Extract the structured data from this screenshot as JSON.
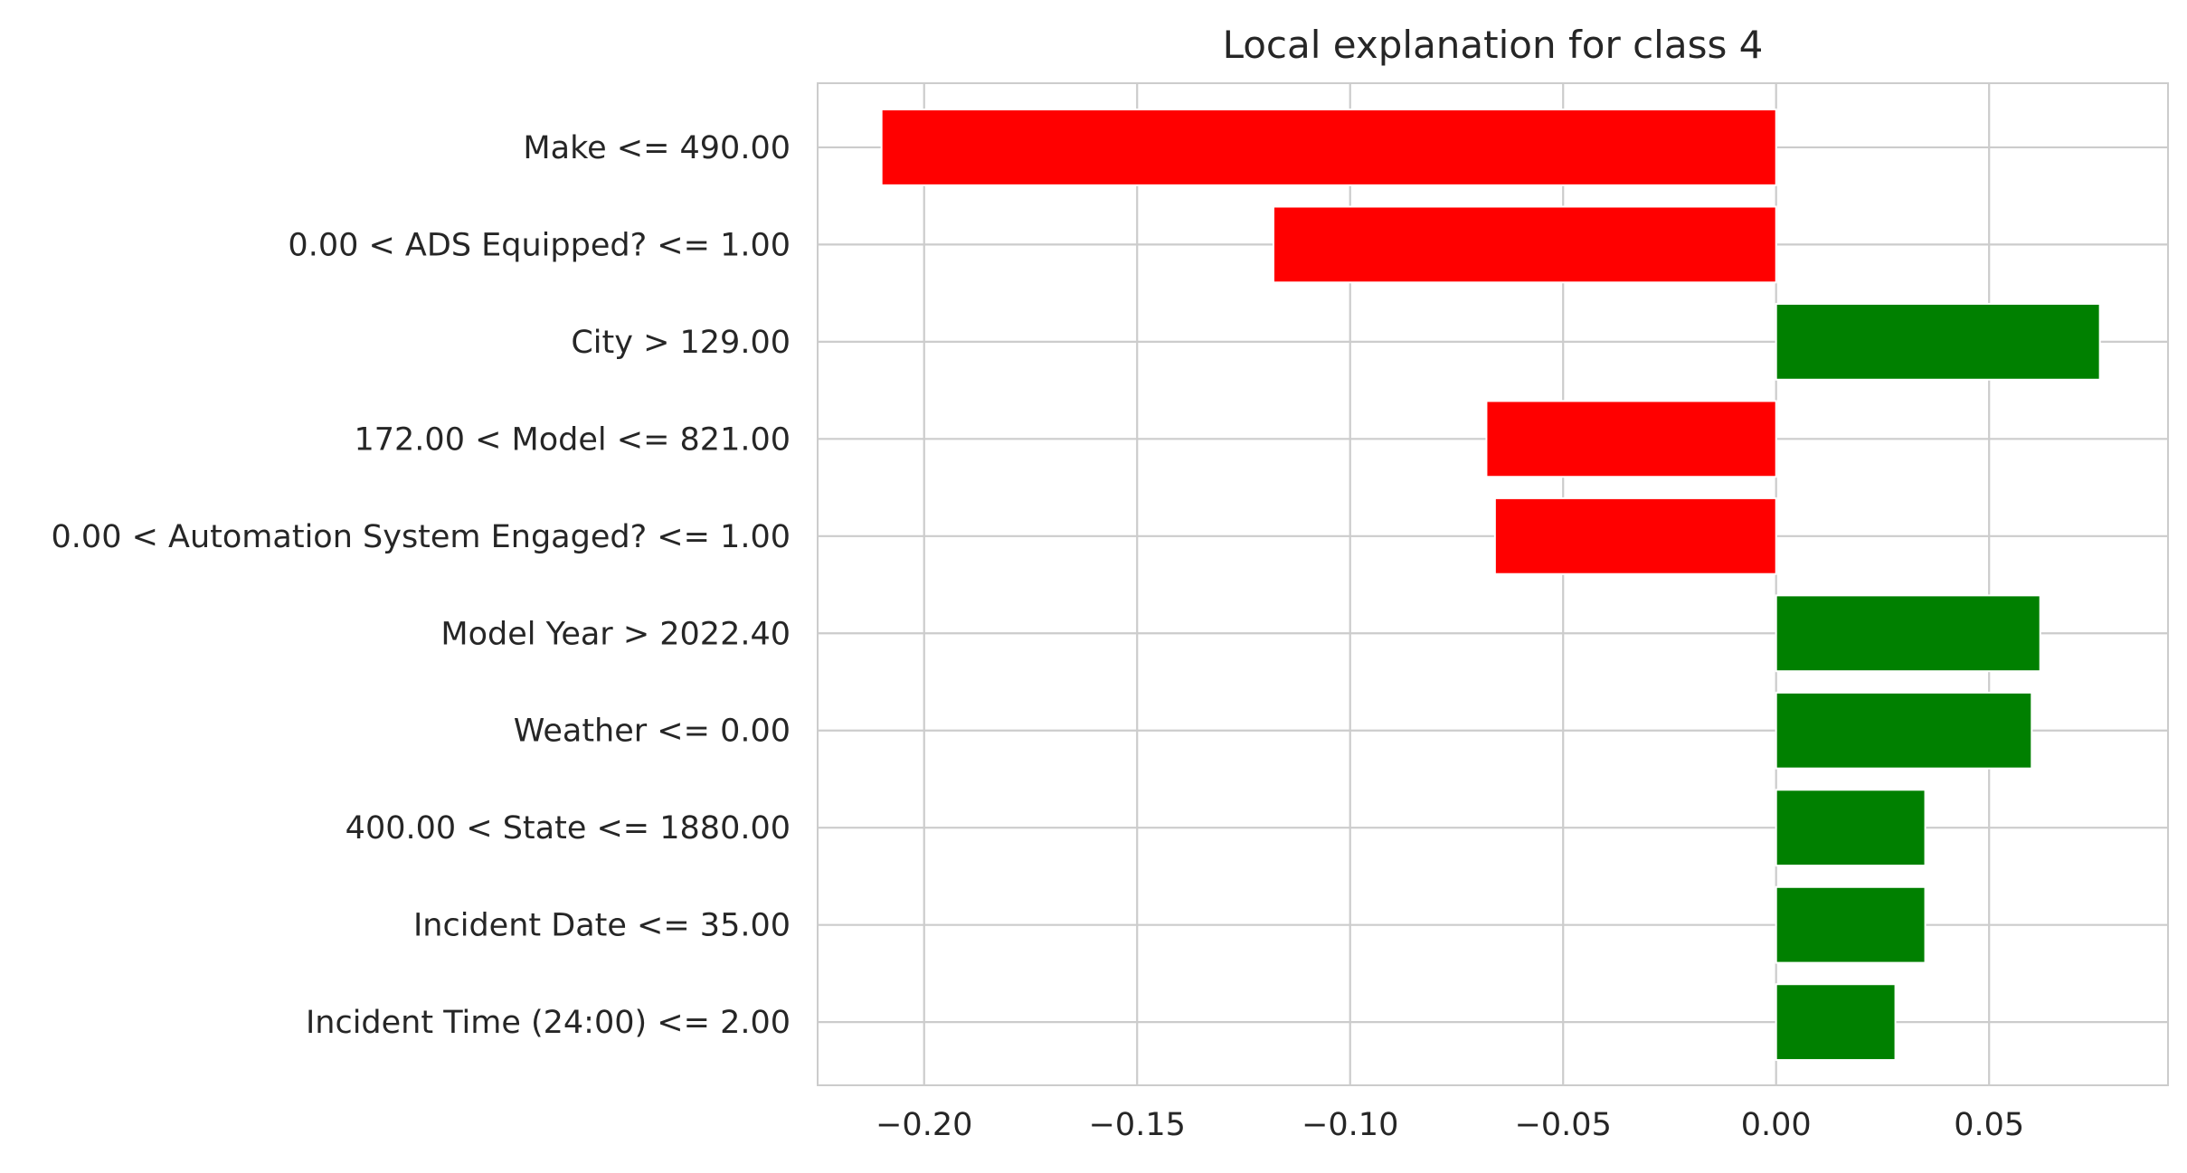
{
  "chart_data": {
    "type": "bar",
    "orientation": "horizontal",
    "title": "Local explanation for class 4",
    "xlabel": "",
    "ylabel": "",
    "xlim": [
      -0.225,
      0.092
    ],
    "grid": true,
    "colors": {
      "positive": "#008000",
      "negative": "#ff0000",
      "grid": "#cccccc",
      "text": "#262626"
    },
    "categories": [
      "Make <= 490.00",
      "0.00 < ADS Equipped? <= 1.00",
      "City > 129.00",
      "172.00 < Model <= 821.00",
      "0.00 < Automation System Engaged? <= 1.00",
      "Model Year > 2022.40",
      "Weather <= 0.00",
      "400.00 < State <= 1880.00",
      "Incident Date <= 35.00",
      "Incident Time (24:00) <= 2.00"
    ],
    "values": [
      -0.21,
      -0.118,
      0.076,
      -0.068,
      -0.066,
      0.062,
      0.06,
      0.035,
      0.035,
      0.028
    ],
    "xticks": [
      -0.2,
      -0.15,
      -0.1,
      -0.05,
      0.0,
      0.05
    ],
    "xtick_labels": [
      "−0.20",
      "−0.15",
      "−0.10",
      "−0.05",
      "0.00",
      "0.05"
    ]
  }
}
